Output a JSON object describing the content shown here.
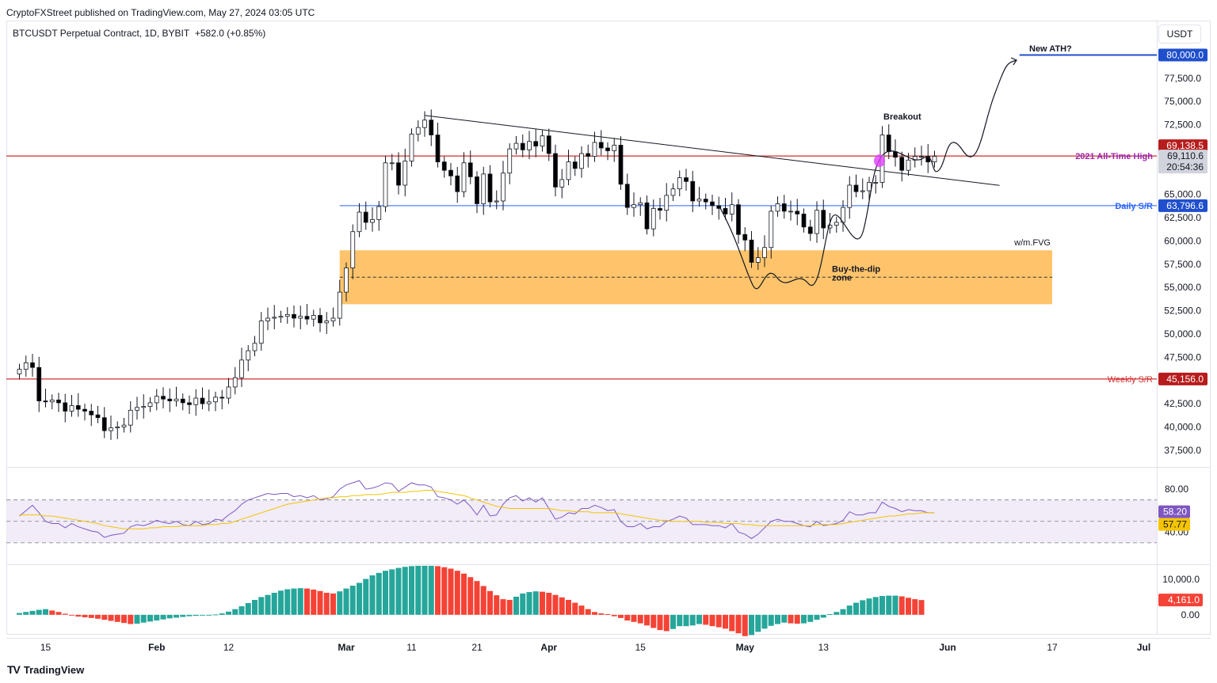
{
  "header": {
    "published": "CryptoFXStreet published on TradingView.com, May 27, 2024 03:05 UTC",
    "symbol": "BTCUSDT Perpetual Contract, 1D, BYBIT",
    "change": "+582.0 (+0.85%)",
    "unit": "USDT"
  },
  "footer": {
    "brand": "TradingView",
    "logo_icon": "tradingview-logo-icon"
  },
  "colors": {
    "up": "#ffffff",
    "down": "#000000",
    "ath": "#d32f2f",
    "weekly": "#d32f2f",
    "daily": "#2962ff",
    "zone": "#ffc46b",
    "rsi": "#7e57c2",
    "rsi_ma": "#f5c400",
    "hist_up": "#26a69a",
    "hist_down": "#f44336",
    "target": "#1f4fcc",
    "pink": "#e040fb"
  },
  "chart_data": [
    {
      "type": "candlestick",
      "title": "BTCUSDT Perpetual Contract, 1D, BYBIT",
      "ylabel": "USDT",
      "ylim": [
        35700,
        83700
      ],
      "x_range": [
        "2024-01-09",
        "2024-07-03"
      ],
      "x_ticks": [
        {
          "date": "2024-01-15",
          "label": "15",
          "bold": false
        },
        {
          "date": "2024-02-01",
          "label": "Feb",
          "bold": true
        },
        {
          "date": "2024-02-12",
          "label": "12",
          "bold": false
        },
        {
          "date": "2024-03-01",
          "label": "Mar",
          "bold": true
        },
        {
          "date": "2024-03-11",
          "label": "11",
          "bold": false
        },
        {
          "date": "2024-03-21",
          "label": "21",
          "bold": false
        },
        {
          "date": "2024-04-01",
          "label": "Apr",
          "bold": true
        },
        {
          "date": "2024-04-15",
          "label": "15",
          "bold": false
        },
        {
          "date": "2024-05-01",
          "label": "May",
          "bold": true
        },
        {
          "date": "2024-05-13",
          "label": "13",
          "bold": false
        },
        {
          "date": "2024-06-01",
          "label": "Jun",
          "bold": true
        },
        {
          "date": "2024-06-17",
          "label": "17",
          "bold": false
        },
        {
          "date": "2024-07-01",
          "label": "Jul",
          "bold": true
        }
      ],
      "y_ticks": [
        {
          "value": 80000,
          "label": "80,000.0"
        },
        {
          "value": 77500,
          "label": "77,500.0"
        },
        {
          "value": 75000,
          "label": "75,000.0"
        },
        {
          "value": 72500,
          "label": "72,500.0"
        },
        {
          "value": 65000,
          "label": "65,000.0"
        },
        {
          "value": 62500,
          "label": "62,500.0"
        },
        {
          "value": 60000,
          "label": "60,000.0"
        },
        {
          "value": 57500,
          "label": "57,500.0"
        },
        {
          "value": 55000,
          "label": "55,000.0"
        },
        {
          "value": 52500,
          "label": "52,500.0"
        },
        {
          "value": 50000,
          "label": "50,000.0"
        },
        {
          "value": 47500,
          "label": "47,500.0"
        },
        {
          "value": 45000,
          "label": "45,000.0"
        },
        {
          "value": 42500,
          "label": "42,500.0"
        },
        {
          "value": 40000,
          "label": "40,000.0"
        },
        {
          "value": 37500,
          "label": "37,500.0"
        }
      ],
      "series_closes": [
        46200,
        46900,
        46400,
        42800,
        42700,
        42900,
        42600,
        41700,
        42300,
        41900,
        41700,
        41300,
        41000,
        39600,
        39900,
        40000,
        40200,
        41800,
        42100,
        42200,
        42600,
        43300,
        43000,
        42800,
        43000,
        42600,
        42400,
        43100,
        42500,
        42700,
        43200,
        43100,
        44300,
        45300,
        47200,
        48200,
        49000,
        51400,
        51700,
        51800,
        51900,
        52100,
        51700,
        51900,
        51600,
        52000,
        51200,
        51400,
        51700,
        54500,
        57100,
        61000,
        63100,
        62000,
        62300,
        63700,
        68400,
        68400,
        66000,
        68600,
        71500,
        72200,
        73000,
        71400,
        68500,
        67600,
        67000,
        65300,
        68400,
        66900,
        64000,
        67200,
        64200,
        64300,
        67300,
        69900,
        70500,
        69800,
        70700,
        70200,
        71300,
        69400,
        65800,
        66600,
        68500,
        67800,
        69400,
        69100,
        70600,
        70000,
        69700,
        70300,
        66100,
        63600,
        63900,
        64100,
        61300,
        63500,
        63300,
        64900,
        65600,
        66800,
        66400,
        64300,
        64500,
        64200,
        63800,
        63500,
        62900,
        63900,
        60700,
        60100,
        57700,
        58200,
        59300,
        63200,
        64000,
        63200,
        63200,
        62900,
        61500,
        60800,
        63300,
        61400,
        61700,
        62000,
        63600,
        66000,
        65300,
        65400,
        66300,
        66300,
        71400,
        69600,
        69000,
        67600,
        68700,
        69100,
        69100,
        68500,
        69100
      ]
    },
    {
      "type": "line",
      "title": "RSI",
      "ylim": [
        10,
        100
      ],
      "x_range": [
        "2024-01-09",
        "2024-07-03"
      ],
      "y_ticks": [
        {
          "value": 80,
          "label": "80.00"
        },
        {
          "value": 40,
          "label": "40.00"
        }
      ],
      "band": [
        30,
        70
      ],
      "midline": 50,
      "rsi_label": "58.20",
      "rsi_ma_label": "57.77",
      "series": [
        {
          "name": "RSI",
          "values": [
            55,
            60,
            65,
            58,
            50,
            48,
            48,
            44,
            48,
            45,
            43,
            41,
            40,
            35,
            37,
            38,
            39,
            45,
            47,
            46,
            48,
            51,
            49,
            48,
            50,
            47,
            46,
            50,
            47,
            48,
            52,
            51,
            56,
            60,
            66,
            70,
            72,
            74,
            76,
            75,
            76,
            76,
            73,
            74,
            72,
            74,
            70,
            71,
            73,
            80,
            84,
            86,
            88,
            80,
            81,
            83,
            86,
            85,
            78,
            82,
            86,
            84,
            84,
            82,
            73,
            72,
            70,
            66,
            70,
            64,
            56,
            65,
            55,
            56,
            66,
            72,
            74,
            69,
            72,
            68,
            72,
            62,
            52,
            54,
            58,
            57,
            62,
            62,
            65,
            63,
            60,
            61,
            50,
            45,
            45,
            48,
            43,
            45,
            45,
            50,
            52,
            55,
            53,
            47,
            47,
            47,
            46,
            46,
            44,
            48,
            40,
            38,
            34,
            38,
            44,
            50,
            52,
            50,
            50,
            48,
            46,
            45,
            50,
            46,
            47,
            48,
            51,
            59,
            56,
            56,
            58,
            58,
            68,
            64,
            62,
            59,
            61,
            60,
            60,
            58,
            58
          ]
        },
        {
          "name": "RSI-MA",
          "values": [
            56,
            56,
            56,
            56,
            55,
            55,
            54,
            53,
            52,
            51,
            50,
            49,
            48,
            46,
            45,
            44,
            43,
            43,
            43,
            43,
            44,
            44,
            45,
            45,
            45,
            46,
            46,
            46,
            46,
            47,
            47,
            48,
            48,
            50,
            52,
            54,
            56,
            58,
            60,
            62,
            64,
            66,
            67,
            68,
            69,
            70,
            71,
            72,
            72,
            73,
            73,
            74,
            74,
            75,
            75,
            75,
            76,
            77,
            77,
            77,
            78,
            78,
            79,
            79,
            78,
            77,
            76,
            75,
            74,
            72,
            70,
            68,
            66,
            64,
            63,
            62,
            62,
            62,
            62,
            62,
            62,
            62,
            61,
            60,
            60,
            59,
            59,
            59,
            58,
            58,
            58,
            58,
            57,
            56,
            55,
            54,
            53,
            52,
            51,
            51,
            50,
            50,
            50,
            50,
            50,
            49,
            49,
            49,
            48,
            48,
            48,
            47,
            47,
            46,
            46,
            46,
            46,
            46,
            46,
            46,
            46,
            46,
            47,
            47,
            47,
            47,
            48,
            49,
            50,
            51,
            52,
            53,
            54,
            55,
            55,
            56,
            57,
            57,
            58,
            58,
            58
          ]
        }
      ]
    },
    {
      "type": "bar",
      "title": "Momentum histogram",
      "ylim": [
        -6500,
        14000
      ],
      "x_range": [
        "2024-01-09",
        "2024-07-03"
      ],
      "y_ticks": [
        {
          "value": 10000,
          "label": "10,000.0"
        },
        {
          "value": 0,
          "label": "0.00"
        }
      ],
      "last_value_label": "4,161.0",
      "values": [
        500,
        800,
        1100,
        1400,
        1600,
        1200,
        800,
        300,
        -200,
        -500,
        -700,
        -900,
        -1100,
        -1400,
        -1700,
        -2000,
        -2300,
        -2600,
        -2500,
        -2200,
        -1900,
        -1600,
        -1300,
        -1000,
        -800,
        -600,
        -400,
        -300,
        -200,
        -100,
        100,
        400,
        900,
        1600,
        2400,
        3300,
        4200,
        5000,
        5600,
        6200,
        6800,
        7200,
        7400,
        7500,
        7400,
        7100,
        6700,
        6200,
        6000,
        6600,
        7400,
        8200,
        9000,
        10100,
        11100,
        11800,
        12400,
        12800,
        13200,
        13500,
        13700,
        13800,
        13800,
        13800,
        13700,
        13400,
        13000,
        12400,
        11600,
        10600,
        9500,
        8100,
        6700,
        5500,
        4400,
        4200,
        5100,
        6000,
        6400,
        6600,
        6500,
        6200,
        5600,
        4900,
        4200,
        3400,
        2600,
        1600,
        800,
        400,
        200,
        -400,
        -900,
        -1600,
        -2000,
        -2400,
        -3000,
        -3700,
        -4300,
        -4600,
        -4000,
        -3200,
        -3200,
        -3000,
        -2600,
        -2800,
        -3200,
        -3500,
        -3900,
        -4600,
        -5200,
        -6000,
        -5700,
        -4800,
        -3900,
        -3100,
        -2600,
        -2200,
        -2400,
        -2500,
        -2400,
        -2000,
        -1400,
        -800,
        200,
        800,
        1600,
        2600,
        3400,
        4100,
        4600,
        5000,
        5300,
        5400,
        5400,
        5200,
        4800,
        4400,
        4161
      ]
    }
  ],
  "annotations": {
    "ath_label": "2021 All-Time High",
    "ath_value": 69138.5,
    "ath_price_label": "69,138.5",
    "current_price_label": "69,110.6",
    "countdown": "20:54:36",
    "daily_label": "Daily S/R",
    "daily_value": 63796.6,
    "daily_price_label": "63,796.6",
    "weekly_label": "Weekly S/R",
    "weekly_value": 45156.0,
    "weekly_price_label": "45,156.0",
    "target_label": "New ATH?",
    "target_value": 80000,
    "target_price_label": "80,000.0",
    "breakout_label": "Breakout",
    "fvg_label": "w/m.FVG",
    "zone_label_1": "Buy-the-dip",
    "zone_label_2": "zone",
    "zone_top": 59000,
    "zone_bottom": 53200,
    "zone_mid": 56100,
    "trendline": [
      {
        "date": "2024-03-13",
        "value": 73500
      },
      {
        "date": "2024-05-26",
        "value": 67000
      }
    ]
  }
}
